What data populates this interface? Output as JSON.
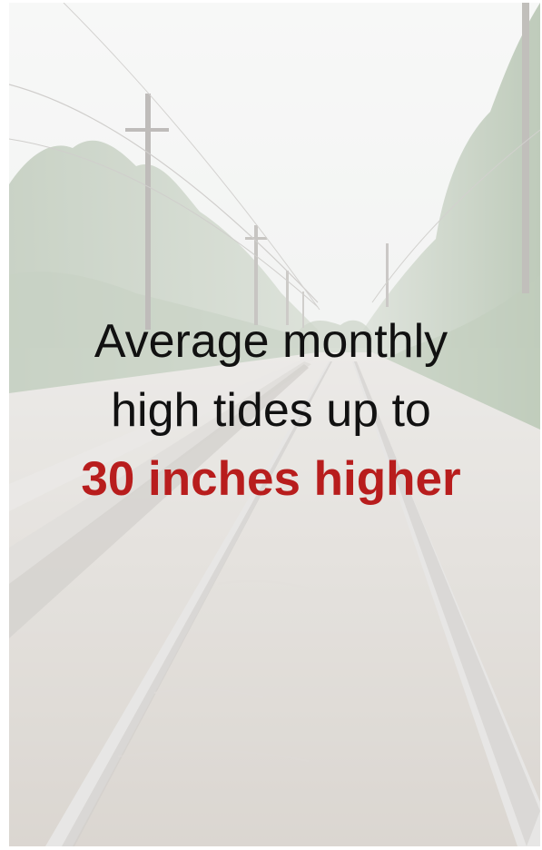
{
  "caption": {
    "line1": "Average monthly",
    "line2": "high tides up to",
    "line3": "30 inches higher"
  },
  "colors": {
    "text": "#111111",
    "emphasis": "#b81d1d",
    "sky": "#eef0ee",
    "foliage": "#a7b6a2",
    "water": "#cfcac3",
    "rail": "#d8d6d3"
  },
  "photo": {
    "subject": "flooded-railway-tracks"
  }
}
